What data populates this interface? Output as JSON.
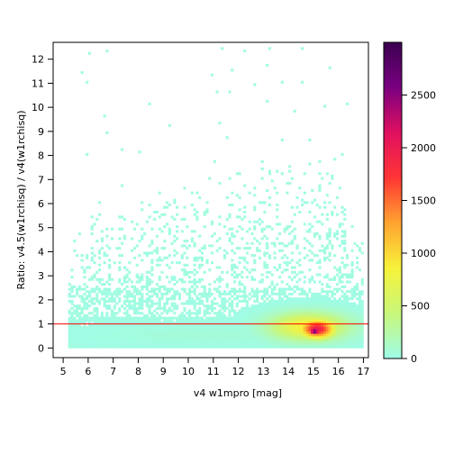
{
  "chart_data": {
    "type": "heatmap",
    "title": "",
    "xlabel": "v4 w1mpro [mag]",
    "ylabel": "Ratio: v4.5(w1rchisq) / v4(w1rchisq)",
    "xlim": [
      4.6,
      17.2
    ],
    "ylim": [
      -0.4,
      12.7
    ],
    "xticks": [
      5,
      6,
      7,
      8,
      9,
      10,
      11,
      12,
      13,
      14,
      15,
      16,
      17
    ],
    "yticks": [
      0,
      1,
      2,
      3,
      4,
      5,
      6,
      7,
      8,
      9,
      10,
      11,
      12
    ],
    "reference_line": {
      "y": 1,
      "color": "#ff0000"
    },
    "grid": false,
    "colorbar": {
      "min": 0,
      "max": 3000,
      "ticks": [
        0,
        500,
        1000,
        1500,
        2000,
        2500
      ],
      "colors": [
        "#9ffce8",
        "#c8f77a",
        "#f7f23a",
        "#ffa430",
        "#ff3535",
        "#e01060",
        "#7a0080",
        "#3a0050"
      ]
    },
    "bin_size": {
      "x": 0.1,
      "y": 0.1
    },
    "density_regions": [
      {
        "x_range": [
          5.3,
          16.8
        ],
        "y_range": [
          0.0,
          1.0
        ],
        "level": "low",
        "approx_count": 60
      },
      {
        "x_range": [
          13.0,
          16.5
        ],
        "y_range": [
          0.2,
          1.5
        ],
        "level": "medium",
        "approx_count": 900
      },
      {
        "x_range": [
          14.3,
          15.9
        ],
        "y_range": [
          0.3,
          1.2
        ],
        "level": "high",
        "approx_count": 2000
      },
      {
        "x_range": [
          14.7,
          15.3
        ],
        "y_range": [
          0.5,
          0.8
        ],
        "level": "peak",
        "approx_count": 2900
      }
    ],
    "max_count": 2900
  }
}
